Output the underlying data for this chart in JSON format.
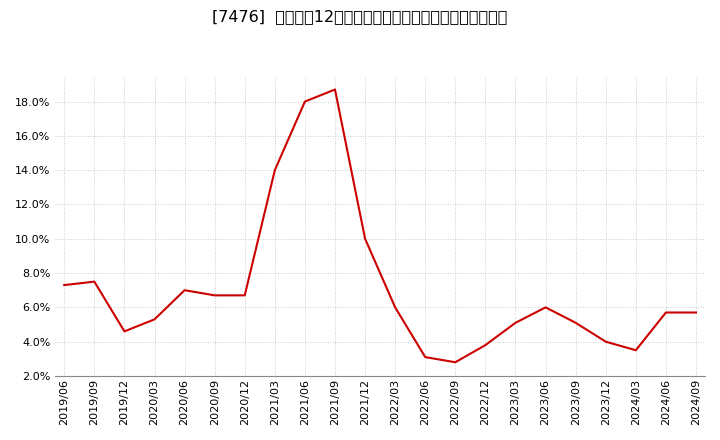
{
  "title": "[7476]  売上高の12か月移動合計の対前年同期増減率の推移",
  "line_color": "#cc0000",
  "background_color": "#ffffff",
  "plot_background_color": "#ffffff",
  "grid_color": "#bbbbbb",
  "dates": [
    "2019/06",
    "2019/09",
    "2019/12",
    "2020/03",
    "2020/06",
    "2020/09",
    "2020/12",
    "2021/03",
    "2021/06",
    "2021/09",
    "2021/12",
    "2022/03",
    "2022/06",
    "2022/09",
    "2022/12",
    "2023/03",
    "2023/06",
    "2023/09",
    "2023/12",
    "2024/03",
    "2024/06",
    "2024/09"
  ],
  "values": [
    0.073,
    0.075,
    0.046,
    0.053,
    0.07,
    0.067,
    0.067,
    0.14,
    0.18,
    0.187,
    0.1,
    0.06,
    0.031,
    0.028,
    0.038,
    0.051,
    0.06,
    0.051,
    0.04,
    0.035,
    0.057,
    0.057
  ],
  "ylim": [
    0.02,
    0.195
  ],
  "yticks": [
    0.02,
    0.04,
    0.06,
    0.08,
    0.1,
    0.12,
    0.14,
    0.16,
    0.18
  ],
  "title_fontsize": 11.5,
  "tick_fontsize": 8.0
}
